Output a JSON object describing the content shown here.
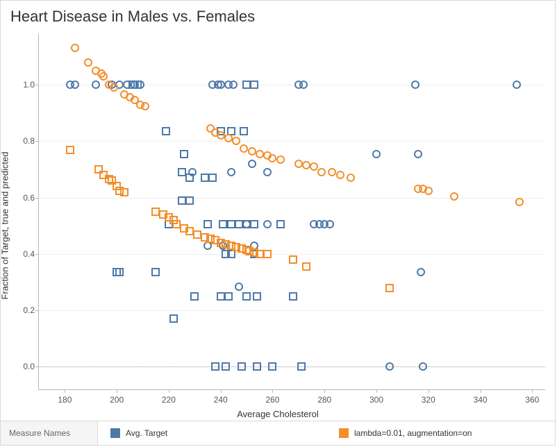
{
  "chart": {
    "type": "scatter",
    "title": "Heart Disease in Males vs. Females",
    "xlabel": "Average Cholesterol",
    "ylabel": "Fraction of Target, true and predicted",
    "background_color": "#ffffff",
    "border_color": "#d9d9d9",
    "axis_color": "#b7b7b7",
    "grid_color": "#efefef",
    "zero_line_color": "#9a9a9a",
    "tick_fontsize": 12,
    "label_fontsize": 13,
    "title_fontsize": 22,
    "marker_size": 12,
    "marker_stroke": 2,
    "xlim": [
      170,
      365
    ],
    "ylim": [
      -0.08,
      1.18
    ],
    "xticks": [
      180,
      200,
      220,
      240,
      260,
      280,
      300,
      320,
      340,
      360
    ],
    "yticks": [
      0.0,
      0.2,
      0.4,
      0.6,
      0.8,
      1.0
    ],
    "legend": {
      "title": "Measure Names",
      "items": [
        {
          "label": "Avg. Target",
          "color": "#4e79a7",
          "shape": "square"
        },
        {
          "label": "lambda=0.01, augmentation=on",
          "color": "#f28e2b",
          "shape": "square"
        }
      ]
    },
    "series": [
      {
        "name": "Avg. Target (male)",
        "color": "#4e79a7",
        "marker": "circle",
        "points": [
          [
            182,
            1.0
          ],
          [
            184,
            1.0
          ],
          [
            192,
            1.0
          ],
          [
            198,
            1.0
          ],
          [
            201,
            1.0
          ],
          [
            204,
            1.0
          ],
          [
            207,
            1.0
          ],
          [
            209,
            1.0
          ],
          [
            237,
            1.0
          ],
          [
            239,
            1.0
          ],
          [
            240,
            1.0
          ],
          [
            243,
            1.0
          ],
          [
            245,
            1.0
          ],
          [
            270,
            1.0
          ],
          [
            272,
            1.0
          ],
          [
            315,
            1.0
          ],
          [
            354,
            1.0
          ],
          [
            229,
            0.69
          ],
          [
            244,
            0.69
          ],
          [
            252,
            0.72
          ],
          [
            258,
            0.69
          ],
          [
            300,
            0.755
          ],
          [
            316,
            0.755
          ],
          [
            250,
            0.505
          ],
          [
            258,
            0.505
          ],
          [
            276,
            0.505
          ],
          [
            278,
            0.505
          ],
          [
            280,
            0.505
          ],
          [
            282,
            0.505
          ],
          [
            235,
            0.43
          ],
          [
            241,
            0.43
          ],
          [
            253,
            0.43
          ],
          [
            247,
            0.285
          ],
          [
            317,
            0.335
          ],
          [
            305,
            0.0
          ],
          [
            318,
            0.0
          ]
        ]
      },
      {
        "name": "Avg. Target (female)",
        "color": "#4e79a7",
        "marker": "square",
        "points": [
          [
            206,
            1.0
          ],
          [
            208,
            1.0
          ],
          [
            250,
            1.0
          ],
          [
            253,
            1.0
          ],
          [
            219,
            0.835
          ],
          [
            240,
            0.835
          ],
          [
            244,
            0.835
          ],
          [
            249,
            0.835
          ],
          [
            226,
            0.755
          ],
          [
            225,
            0.69
          ],
          [
            228,
            0.67
          ],
          [
            234,
            0.67
          ],
          [
            237,
            0.67
          ],
          [
            225,
            0.59
          ],
          [
            228,
            0.59
          ],
          [
            220,
            0.505
          ],
          [
            235,
            0.505
          ],
          [
            241,
            0.505
          ],
          [
            244,
            0.505
          ],
          [
            247,
            0.505
          ],
          [
            250,
            0.505
          ],
          [
            253,
            0.505
          ],
          [
            263,
            0.505
          ],
          [
            242,
            0.4
          ],
          [
            244,
            0.4
          ],
          [
            253,
            0.4
          ],
          [
            200,
            0.335
          ],
          [
            201,
            0.335
          ],
          [
            215,
            0.335
          ],
          [
            230,
            0.25
          ],
          [
            240,
            0.25
          ],
          [
            243,
            0.25
          ],
          [
            250,
            0.25
          ],
          [
            254,
            0.25
          ],
          [
            268,
            0.25
          ],
          [
            222,
            0.17
          ],
          [
            238,
            0.0
          ],
          [
            242,
            0.0
          ],
          [
            248,
            0.0
          ],
          [
            254,
            0.0
          ],
          [
            260,
            0.0
          ],
          [
            271,
            0.0
          ]
        ]
      },
      {
        "name": "lambda=0.01 (male)",
        "color": "#f28e2b",
        "marker": "circle",
        "points": [
          [
            184,
            1.13
          ],
          [
            189,
            1.08
          ],
          [
            192,
            1.05
          ],
          [
            194,
            1.04
          ],
          [
            195,
            1.03
          ],
          [
            197,
            1.0
          ],
          [
            199,
            0.99
          ],
          [
            203,
            0.965
          ],
          [
            205,
            0.955
          ],
          [
            207,
            0.945
          ],
          [
            209,
            0.93
          ],
          [
            211,
            0.925
          ],
          [
            236,
            0.845
          ],
          [
            238,
            0.83
          ],
          [
            240,
            0.82
          ],
          [
            243,
            0.81
          ],
          [
            246,
            0.8
          ],
          [
            249,
            0.775
          ],
          [
            252,
            0.765
          ],
          [
            255,
            0.755
          ],
          [
            258,
            0.75
          ],
          [
            260,
            0.74
          ],
          [
            263,
            0.735
          ],
          [
            270,
            0.72
          ],
          [
            273,
            0.715
          ],
          [
            276,
            0.71
          ],
          [
            279,
            0.69
          ],
          [
            283,
            0.69
          ],
          [
            286,
            0.68
          ],
          [
            290,
            0.67
          ],
          [
            316,
            0.63
          ],
          [
            318,
            0.63
          ],
          [
            320,
            0.625
          ],
          [
            330,
            0.605
          ],
          [
            355,
            0.585
          ]
        ]
      },
      {
        "name": "lambda=0.01 (female)",
        "color": "#f28e2b",
        "marker": "square",
        "points": [
          [
            182,
            0.77
          ],
          [
            193,
            0.7
          ],
          [
            195,
            0.68
          ],
          [
            197,
            0.665
          ],
          [
            198,
            0.66
          ],
          [
            200,
            0.64
          ],
          [
            201,
            0.625
          ],
          [
            203,
            0.62
          ],
          [
            215,
            0.55
          ],
          [
            218,
            0.54
          ],
          [
            220,
            0.53
          ],
          [
            222,
            0.52
          ],
          [
            223,
            0.505
          ],
          [
            226,
            0.49
          ],
          [
            228,
            0.48
          ],
          [
            231,
            0.47
          ],
          [
            234,
            0.46
          ],
          [
            236,
            0.455
          ],
          [
            238,
            0.45
          ],
          [
            240,
            0.44
          ],
          [
            242,
            0.435
          ],
          [
            244,
            0.43
          ],
          [
            246,
            0.425
          ],
          [
            248,
            0.42
          ],
          [
            250,
            0.415
          ],
          [
            251,
            0.41
          ],
          [
            253,
            0.405
          ],
          [
            255,
            0.4
          ],
          [
            258,
            0.4
          ],
          [
            268,
            0.38
          ],
          [
            273,
            0.355
          ],
          [
            305,
            0.28
          ]
        ]
      }
    ]
  }
}
